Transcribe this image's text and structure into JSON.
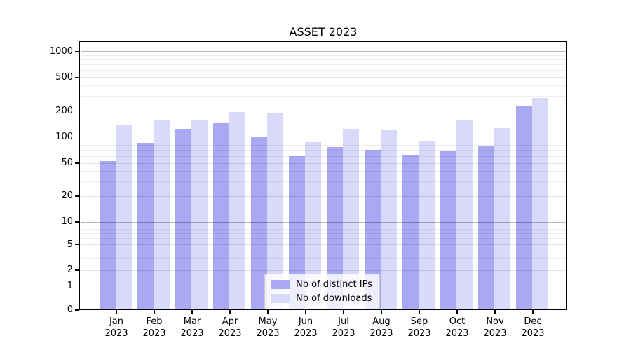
{
  "chart_data": {
    "type": "bar",
    "title": "ASSET 2023",
    "x_categories": [
      "Jan 2023",
      "Feb 2023",
      "Mar 2023",
      "Apr 2023",
      "May 2023",
      "Jun 2023",
      "Jul 2023",
      "Aug 2023",
      "Sep 2023",
      "Oct 2023",
      "Nov 2023",
      "Dec 2023"
    ],
    "series": [
      {
        "name": "Nb of distinct IPs",
        "color": "#a8a8f3",
        "values": [
          53,
          86,
          124,
          147,
          99,
          60,
          76,
          71,
          62,
          70,
          78,
          226
        ]
      },
      {
        "name": "Nb of downloads",
        "color": "#d9d9f9",
        "values": [
          136,
          156,
          159,
          195,
          192,
          87,
          123,
          121,
          90,
          156,
          127,
          284
        ]
      }
    ],
    "y_axis": {
      "scale": "symlog",
      "ticks": [
        0,
        1,
        2,
        5,
        10,
        20,
        50,
        100,
        200,
        500,
        1000
      ],
      "range": [
        0,
        1200
      ]
    },
    "grid": true,
    "legend": {
      "position": "lower center",
      "entries": [
        "Nb of distinct IPs",
        "Nb of downloads"
      ]
    },
    "colors": {
      "major_grid": "rgba(0,0,0,0.28)",
      "labeled_minor_grid": "rgba(0,0,0,0.11)",
      "minor_grid": "rgba(0,0,0,0.065)"
    }
  }
}
